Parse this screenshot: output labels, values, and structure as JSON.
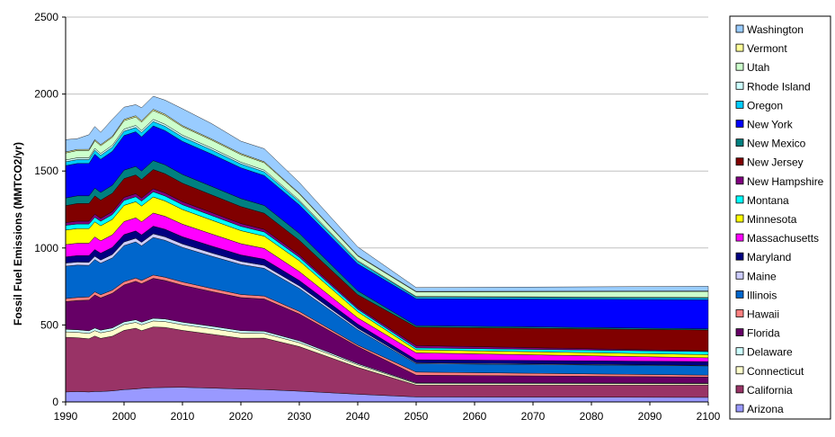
{
  "chart_data": {
    "type": "area",
    "title": "",
    "xlabel": "",
    "ylabel": "Fossil Fuel Emissions (MMTCO2/yr)",
    "xlim": [
      1990,
      2100
    ],
    "ylim": [
      0,
      2500
    ],
    "xticks": [
      1990,
      2000,
      2010,
      2020,
      2030,
      2040,
      2050,
      2060,
      2070,
      2080,
      2090,
      2100
    ],
    "yticks": [
      0,
      500,
      1000,
      1500,
      2000,
      2500
    ],
    "grid": "horizontal",
    "legend_position": "right",
    "x": [
      1990,
      1992,
      1994,
      1995,
      1996,
      1998,
      2000,
      2002,
      2003,
      2005,
      2007,
      2010,
      2015,
      2020,
      2024,
      2030,
      2040,
      2050,
      2100
    ],
    "series": [
      {
        "name": "Arizona",
        "color": "#9999ff",
        "values": [
          65,
          67,
          65,
          68,
          68,
          72,
          80,
          84,
          88,
          92,
          94,
          95,
          90,
          84,
          80,
          70,
          50,
          33,
          30
        ]
      },
      {
        "name": "California",
        "color": "#993366",
        "values": [
          355,
          350,
          345,
          360,
          345,
          355,
          385,
          395,
          375,
          395,
          390,
          370,
          350,
          330,
          335,
          290,
          175,
          77,
          80
        ]
      },
      {
        "name": "Connecticut",
        "color": "#ffffcc",
        "values": [
          35,
          35,
          35,
          35,
          36,
          37,
          38,
          38,
          38,
          39,
          38,
          37,
          36,
          34,
          30,
          25,
          16,
          9,
          8
        ]
      },
      {
        "name": "Delaware",
        "color": "#ccffff",
        "values": [
          17,
          17,
          17,
          17,
          17,
          17,
          17,
          17,
          17,
          17,
          17,
          16,
          16,
          15,
          14,
          12,
          8,
          5,
          4
        ]
      },
      {
        "name": "Florida",
        "color": "#660066",
        "values": [
          180,
          190,
          200,
          215,
          210,
          225,
          240,
          250,
          250,
          260,
          250,
          240,
          225,
          215,
          210,
          175,
          110,
          50,
          40
        ]
      },
      {
        "name": "Hawaii",
        "color": "#ff8080",
        "values": [
          20,
          20,
          20,
          20,
          20,
          20,
          21,
          21,
          21,
          21,
          21,
          21,
          20,
          20,
          19,
          16,
          10,
          20,
          12
        ]
      },
      {
        "name": "Illinois",
        "color": "#0066cc",
        "values": [
          210,
          210,
          205,
          210,
          205,
          210,
          235,
          235,
          225,
          245,
          240,
          225,
          210,
          195,
          180,
          150,
          100,
          55,
          60
        ]
      },
      {
        "name": "Maine",
        "color": "#ccccff",
        "values": [
          20,
          20,
          20,
          21,
          21,
          22,
          23,
          23,
          23,
          23,
          23,
          22,
          21,
          20,
          19,
          16,
          10,
          5,
          3
        ]
      },
      {
        "name": "Maryland",
        "color": "#000080",
        "values": [
          40,
          42,
          44,
          44,
          44,
          46,
          48,
          48,
          48,
          50,
          49,
          47,
          45,
          42,
          40,
          35,
          27,
          20,
          25
        ]
      },
      {
        "name": "Massachusetts",
        "color": "#ff00ff",
        "values": [
          80,
          80,
          80,
          82,
          80,
          82,
          85,
          85,
          85,
          85,
          84,
          82,
          78,
          73,
          70,
          58,
          40,
          45,
          25
        ]
      },
      {
        "name": "Minnesota",
        "color": "#ffff00",
        "values": [
          95,
          95,
          95,
          98,
          98,
          100,
          105,
          105,
          103,
          105,
          100,
          95,
          90,
          85,
          80,
          70,
          40,
          20,
          20
        ]
      },
      {
        "name": "Montana",
        "color": "#00ffff",
        "values": [
          30,
          30,
          30,
          30,
          30,
          31,
          32,
          32,
          32,
          33,
          32,
          31,
          30,
          28,
          27,
          23,
          16,
          12,
          20
        ]
      },
      {
        "name": "New Hampshire",
        "color": "#800080",
        "values": [
          18,
          18,
          18,
          19,
          19,
          19,
          20,
          20,
          20,
          20,
          20,
          20,
          19,
          18,
          17,
          15,
          10,
          15,
          5
        ]
      },
      {
        "name": "New Jersey",
        "color": "#800000",
        "values": [
          110,
          115,
          115,
          120,
          118,
          120,
          122,
          122,
          120,
          125,
          125,
          120,
          115,
          110,
          105,
          95,
          85,
          120,
          135
        ]
      },
      {
        "name": "New Mexico",
        "color": "#008080",
        "values": [
          50,
          50,
          50,
          50,
          50,
          52,
          55,
          55,
          55,
          58,
          58,
          57,
          55,
          52,
          50,
          45,
          25,
          10,
          8
        ]
      },
      {
        "name": "New York",
        "color": "#0000ff",
        "values": [
          210,
          210,
          210,
          220,
          215,
          220,
          225,
          225,
          222,
          225,
          222,
          215,
          210,
          200,
          195,
          185,
          175,
          175,
          190
        ]
      },
      {
        "name": "Oregon",
        "color": "#00ccff",
        "values": [
          25,
          25,
          25,
          26,
          26,
          27,
          28,
          28,
          28,
          29,
          28,
          28,
          27,
          25,
          24,
          22,
          15,
          10,
          10
        ]
      },
      {
        "name": "Rhode Island",
        "color": "#ccffff",
        "values": [
          12,
          12,
          12,
          12,
          12,
          12,
          13,
          13,
          13,
          13,
          13,
          12,
          12,
          11,
          11,
          9,
          6,
          4,
          3
        ]
      },
      {
        "name": "Utah",
        "color": "#ccffcc",
        "values": [
          45,
          47,
          48,
          50,
          50,
          52,
          55,
          55,
          55,
          58,
          57,
          55,
          52,
          50,
          48,
          40,
          30,
          30,
          40
        ]
      },
      {
        "name": "Vermont",
        "color": "#ffff99",
        "values": [
          7,
          7,
          7,
          7,
          7,
          7,
          8,
          8,
          8,
          8,
          8,
          7,
          7,
          7,
          6,
          5,
          4,
          3,
          3
        ]
      },
      {
        "name": "Washington",
        "color": "#99ccff",
        "values": [
          80,
          70,
          95,
          85,
          80,
          110,
          80,
          72,
          85,
          85,
          92,
          110,
          100,
          80,
          85,
          70,
          55,
          25,
          30
        ]
      }
    ]
  }
}
